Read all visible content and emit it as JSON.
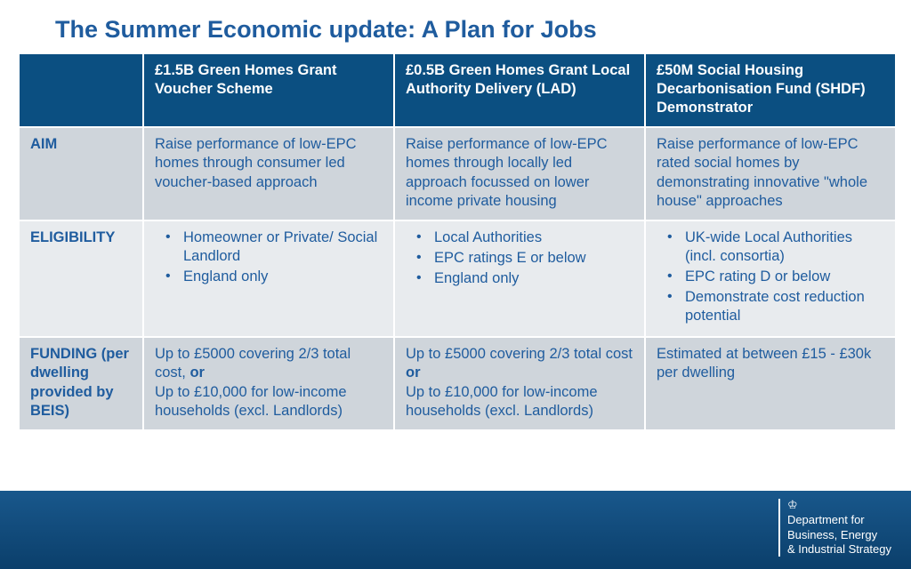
{
  "title": "The Summer Economic update: A Plan for Jobs",
  "columns": {
    "empty": "",
    "c1": "£1.5B Green Homes Grant Voucher Scheme",
    "c2": "£0.5B Green Homes Grant Local Authority Delivery (LAD)",
    "c3": "£50M Social Housing Decarbonisation Fund (SHDF) Demonstrator"
  },
  "rows": {
    "aim": {
      "label": "AIM",
      "c1": "Raise performance of low-EPC homes through consumer led voucher-based approach",
      "c2": "Raise performance of low-EPC homes through locally led approach focussed on lower income private housing",
      "c3": "Raise performance of low-EPC rated social homes by demonstrating innovative \"whole house\" approaches"
    },
    "elig": {
      "label": "ELIGIBILITY",
      "c1": [
        "Homeowner or Private/ Social Landlord",
        "England only"
      ],
      "c2": [
        "Local Authorities",
        "EPC ratings E or below",
        "England only"
      ],
      "c3": [
        "UK-wide Local Authorities (incl. consortia)",
        "EPC rating D or below",
        "Demonstrate cost reduction potential"
      ]
    },
    "fund": {
      "label": "FUNDING (per dwelling provided by BEIS)",
      "c1_a": "Up to £5000 covering 2/3 total cost, ",
      "c1_or": "or",
      "c1_b": "Up to £10,000 for low-income households (excl. Landlords)",
      "c2_a": "Up to £5000 covering 2/3 total cost ",
      "c2_or": "or",
      "c2_b": "Up to £10,000 for low-income households (excl. Landlords)",
      "c3": "Estimated at between £15 - £30k per dwelling"
    }
  },
  "footer": {
    "crest": "♔",
    "line1": "Department for",
    "line2": "Business, Energy",
    "line3": "& Industrial Strategy"
  },
  "colors": {
    "title": "#1f5c9e",
    "header_bg": "#0b4f81",
    "row_alt1": "#cfd5db",
    "row_alt2": "#e8ebee",
    "text": "#1f5c9e",
    "footer_grad_top": "#1a5a8f",
    "footer_grad_bot": "#0b3f6b"
  }
}
